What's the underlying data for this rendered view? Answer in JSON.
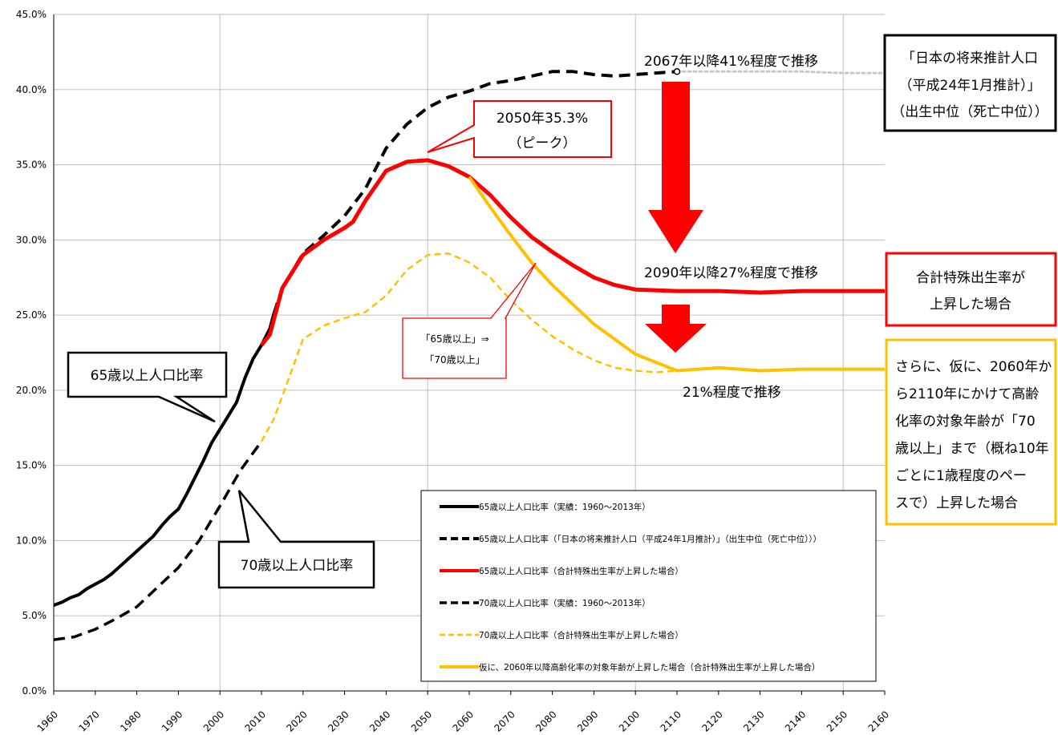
{
  "colors": {
    "black": "#000000",
    "red": "#ff0000",
    "yellow": "#ffc000",
    "gray": "#c8c8c8",
    "grid": "#bfbfbf"
  },
  "chart_data": {
    "type": "line",
    "xlim": [
      1960,
      2160
    ],
    "ylim": [
      0,
      45
    ],
    "x_ticks": [
      "1960",
      "1970",
      "1980",
      "1990",
      "2000",
      "2010",
      "2020",
      "2030",
      "2040",
      "2050",
      "2060",
      "2070",
      "2080",
      "2090",
      "2100",
      "2110",
      "2120",
      "2130",
      "2140",
      "2150",
      "2160"
    ],
    "y_ticks": [
      "0.0%",
      "5.0%",
      "10.0%",
      "15.0%",
      "20.0%",
      "25.0%",
      "30.0%",
      "35.0%",
      "40.0%",
      "45.0%"
    ],
    "grid": true,
    "legend_position": "center-right",
    "series": [
      {
        "name": "65歳以上人口比率（実績：1960～2013年）",
        "color": "#000000",
        "style": "solid",
        "width": 4,
        "x": [
          1960,
          1962,
          1964,
          1966,
          1968,
          1970,
          1972,
          1974,
          1976,
          1978,
          1980,
          1982,
          1984,
          1986,
          1988,
          1990,
          1992,
          1994,
          1996,
          1998,
          2000,
          2002,
          2004,
          2006,
          2008,
          2010,
          2012,
          2013
        ],
        "y": [
          5.7,
          5.9,
          6.2,
          6.4,
          6.8,
          7.1,
          7.4,
          7.8,
          8.3,
          8.8,
          9.3,
          9.8,
          10.3,
          11.0,
          11.6,
          12.1,
          13.1,
          14.2,
          15.3,
          16.5,
          17.4,
          18.3,
          19.2,
          20.8,
          22.1,
          23.0,
          24.1,
          25.1
        ]
      },
      {
        "name": "65歳以上人口比率（「日本の将来推計人口（平成24年1月推計）」（出生中位（死亡中位）））",
        "color": "#000000",
        "style": "dashed",
        "width": 4,
        "x": [
          2013,
          2015,
          2020,
          2025,
          2030,
          2035,
          2040,
          2045,
          2050,
          2055,
          2060,
          2065,
          2070,
          2075,
          2080,
          2085,
          2090,
          2095,
          2100,
          2105,
          2110
        ],
        "y": [
          25.1,
          26.8,
          29.1,
          30.3,
          31.6,
          33.4,
          36.1,
          37.7,
          38.8,
          39.5,
          39.9,
          40.4,
          40.6,
          40.9,
          41.2,
          41.2,
          41.0,
          40.9,
          41.0,
          41.1,
          41.2
        ]
      },
      {
        "name": "",
        "color": "#c8c8c8",
        "style": "dotted",
        "width": 3,
        "x": [
          2110,
          2120,
          2130,
          2140,
          2150,
          2160
        ],
        "y": [
          41.2,
          41.2,
          41.2,
          41.2,
          41.1,
          41.1
        ]
      },
      {
        "name": "65歳以上人口比率（合計特殊出生率が上昇した場合）",
        "color": "#ff0000",
        "style": "solid",
        "width": 5,
        "x": [
          2010,
          2012,
          2015,
          2020,
          2025,
          2030,
          2032,
          2035,
          2040,
          2045,
          2050,
          2055,
          2060,
          2065,
          2070,
          2075,
          2080,
          2085,
          2090,
          2095,
          2100,
          2110,
          2120,
          2130,
          2140,
          2150,
          2160
        ],
        "y": [
          23.0,
          23.7,
          26.8,
          29.0,
          30.0,
          30.8,
          31.2,
          32.6,
          34.6,
          35.2,
          35.3,
          34.9,
          34.2,
          33.0,
          31.5,
          30.2,
          29.2,
          28.3,
          27.5,
          27.0,
          26.7,
          26.6,
          26.6,
          26.5,
          26.6,
          26.6,
          26.6
        ]
      },
      {
        "name": "70歳以上人口比率（実績：1960～2013年）",
        "color": "#000000",
        "style": "dashed",
        "width": 3.5,
        "x": [
          1960,
          1965,
          1970,
          1975,
          1980,
          1985,
          1990,
          1995,
          2000,
          2005,
          2010
        ],
        "y": [
          3.4,
          3.6,
          4.1,
          4.8,
          5.6,
          6.9,
          8.2,
          10.0,
          12.3,
          14.7,
          16.6
        ]
      },
      {
        "name": "70歳以上人口比率（合計特殊出生率が上昇した場合）",
        "color": "#ffc000",
        "style": "dashed",
        "width": 2.5,
        "x": [
          2010,
          2013,
          2015,
          2020,
          2025,
          2030,
          2035,
          2040,
          2045,
          2050,
          2055,
          2060,
          2065,
          2070,
          2075,
          2080,
          2085,
          2090,
          2095,
          2100,
          2105,
          2110
        ],
        "y": [
          16.6,
          18.1,
          19.6,
          23.4,
          24.3,
          24.8,
          25.2,
          26.3,
          28.0,
          29.0,
          29.1,
          28.5,
          27.5,
          26.0,
          24.7,
          23.6,
          22.7,
          22.0,
          21.5,
          21.3,
          21.2,
          21.3
        ]
      },
      {
        "name": "仮に、2060年以降高齢化率の対象年齢が上昇した場合（合計特殊出生率が上昇した場合）",
        "color": "#ffc000",
        "style": "solid",
        "width": 4,
        "x": [
          2060,
          2065,
          2070,
          2075,
          2080,
          2090,
          2100,
          2110,
          2120,
          2130,
          2140,
          2150,
          2160
        ],
        "y": [
          34.2,
          32.2,
          30.3,
          28.5,
          27.0,
          24.4,
          22.4,
          21.3,
          21.5,
          21.3,
          21.4,
          21.4,
          21.4
        ]
      }
    ]
  },
  "annotations": {
    "label_65": "65歳以上人口比率",
    "label_70": "70歳以上人口比率",
    "peak_line1": "2050年35.3%",
    "peak_line2": "（ピーク）",
    "trend_41": "2067年以降41%程度で推移",
    "trend_27": "2090年以降27%程度で推移",
    "trend_21": "21%程度で推移",
    "shift_line1": "「65歳以上」⇒",
    "shift_line2": "「70歳以上」",
    "box_projection": [
      "「日本の将来推計人口",
      "（平成24年1月推計）」",
      "（出生中位（死亡中位））"
    ],
    "box_fertility": [
      "合計特殊出生率が",
      "上昇した場合"
    ],
    "box_age": [
      "さらに、仮に、2060年か",
      "ら2110年にかけて高齢",
      "化率の対象年齢が「70",
      "歳以上」まで（概ね10年",
      "ごとに1歳程度のペー",
      "スで）上昇した場合"
    ]
  }
}
